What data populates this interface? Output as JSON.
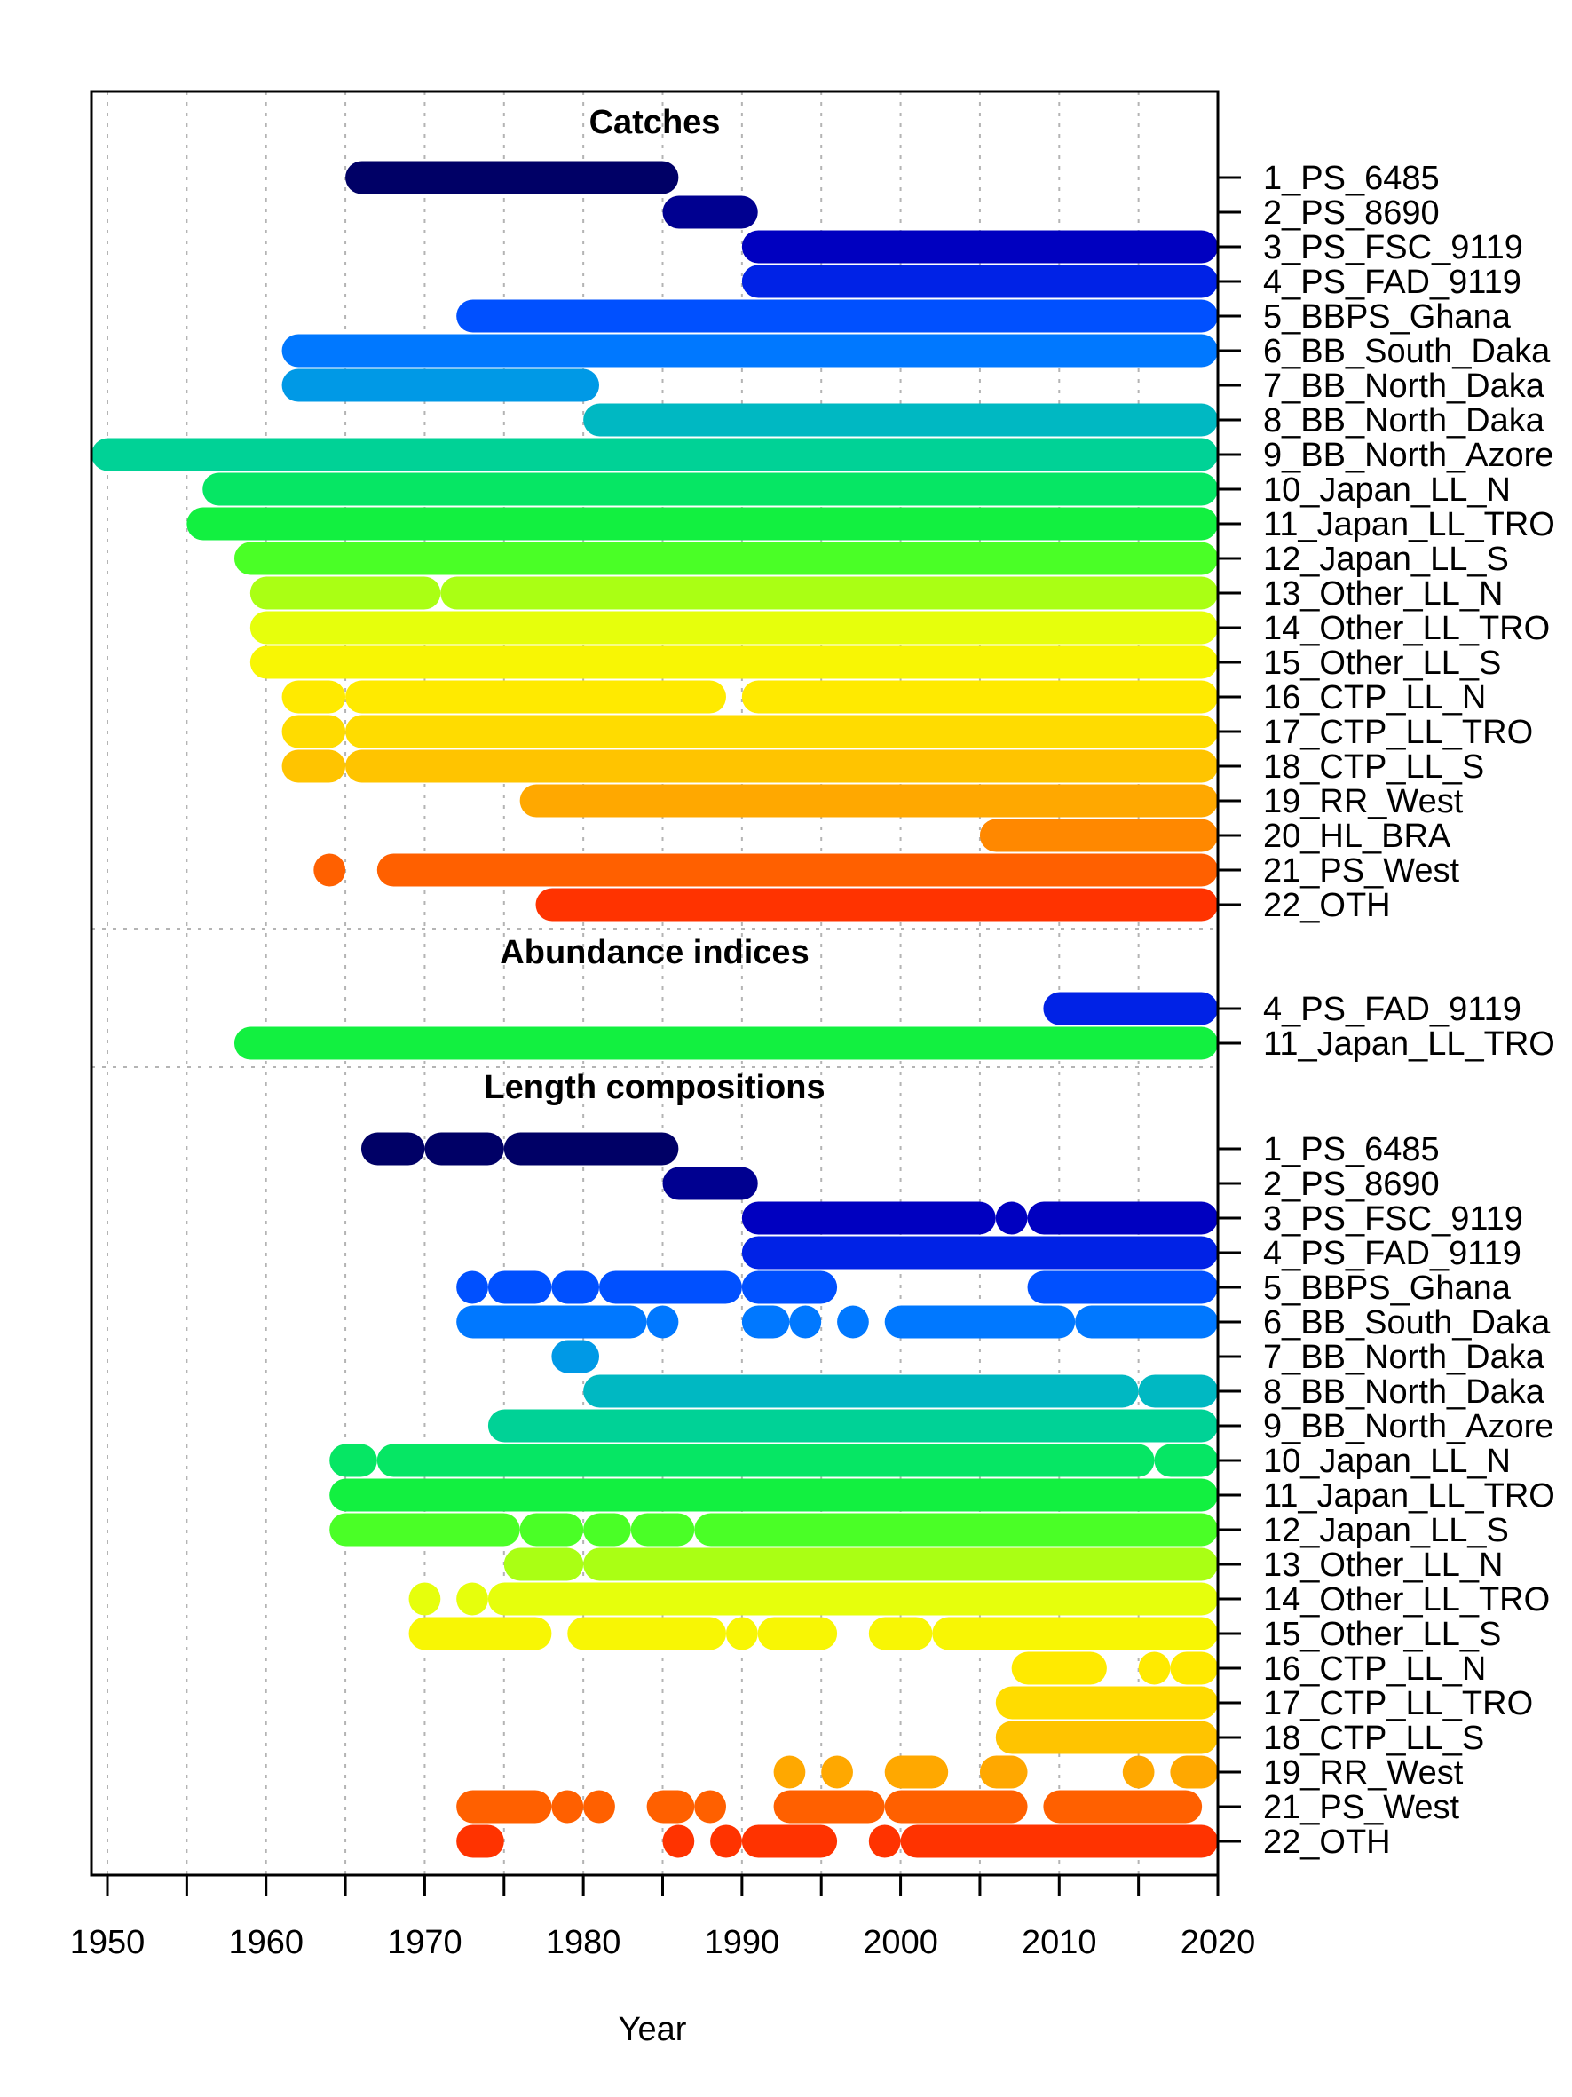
{
  "chart_data": {
    "type": "timeline",
    "xlabel": "Year",
    "xlim": [
      1949,
      2020
    ],
    "x_ticks": [
      1950,
      1955,
      1960,
      1965,
      1970,
      1975,
      1980,
      1985,
      1990,
      1995,
      2000,
      2005,
      2010,
      2015,
      2020
    ],
    "x_tick_labels": [
      "1950",
      "1960",
      "1970",
      "1980",
      "1990",
      "2000",
      "2010",
      "2020"
    ],
    "grid": "vertical dotted every 5 years; horizontal dotted separators between panels",
    "fleet_colors": {
      "1": "#000066",
      "2": "#000090",
      "3": "#0000C0",
      "4": "#0022E6",
      "5": "#0050FF",
      "6": "#0078FF",
      "7": "#0099E6",
      "8": "#00B8C2",
      "9": "#00D296",
      "10": "#06E664",
      "11": "#12F040",
      "12": "#4AFF26",
      "13": "#AAFF14",
      "14": "#E6FF0C",
      "15": "#F8F604",
      "16": "#FFEA00",
      "17": "#FFDC00",
      "18": "#FFC400",
      "19": "#FFA800",
      "20": "#FF8800",
      "21": "#FF6000",
      "22": "#FF3300"
    },
    "panels": [
      {
        "title": "Catches",
        "rows": [
          {
            "label": "1_PS_6485",
            "fleet": "1",
            "segments": [
              [
                1965,
                1986
              ]
            ]
          },
          {
            "label": "2_PS_8690",
            "fleet": "2",
            "segments": [
              [
                1985,
                1991
              ]
            ]
          },
          {
            "label": "3_PS_FSC_9119",
            "fleet": "3",
            "segments": [
              [
                1990,
                2020
              ]
            ]
          },
          {
            "label": "4_PS_FAD_9119",
            "fleet": "4",
            "segments": [
              [
                1990,
                2020
              ]
            ]
          },
          {
            "label": "5_BBPS_Ghana",
            "fleet": "5",
            "segments": [
              [
                1972,
                2020
              ]
            ]
          },
          {
            "label": "6_BB_South_Daka",
            "fleet": "6",
            "segments": [
              [
                1961,
                2020
              ]
            ]
          },
          {
            "label": "7_BB_North_Daka",
            "fleet": "7",
            "segments": [
              [
                1961,
                1981
              ]
            ]
          },
          {
            "label": "8_BB_North_Daka",
            "fleet": "8",
            "segments": [
              [
                1980,
                2020
              ]
            ]
          },
          {
            "label": "9_BB_North_Azore",
            "fleet": "9",
            "segments": [
              [
                1949,
                2020
              ]
            ]
          },
          {
            "label": "10_Japan_LL_N",
            "fleet": "10",
            "segments": [
              [
                1956,
                2020
              ]
            ]
          },
          {
            "label": "11_Japan_LL_TRO",
            "fleet": "11",
            "segments": [
              [
                1955,
                2020
              ]
            ]
          },
          {
            "label": "12_Japan_LL_S",
            "fleet": "12",
            "segments": [
              [
                1958,
                2020
              ]
            ]
          },
          {
            "label": "13_Other_LL_N",
            "fleet": "13",
            "segments": [
              [
                1959,
                1971
              ],
              [
                1971,
                2020
              ]
            ]
          },
          {
            "label": "14_Other_LL_TRO",
            "fleet": "14",
            "segments": [
              [
                1959,
                2020
              ]
            ]
          },
          {
            "label": "15_Other_LL_S",
            "fleet": "15",
            "segments": [
              [
                1959,
                2020
              ]
            ]
          },
          {
            "label": "16_CTP_LL_N",
            "fleet": "16",
            "segments": [
              [
                1961,
                1965
              ],
              [
                1965,
                1989
              ],
              [
                1990,
                2020
              ]
            ]
          },
          {
            "label": "17_CTP_LL_TRO",
            "fleet": "17",
            "segments": [
              [
                1961,
                1965
              ],
              [
                1965,
                2020
              ]
            ]
          },
          {
            "label": "18_CTP_LL_S",
            "fleet": "18",
            "segments": [
              [
                1961,
                1965
              ],
              [
                1965,
                2020
              ]
            ]
          },
          {
            "label": "19_RR_West",
            "fleet": "19",
            "segments": [
              [
                1976,
                2020
              ]
            ]
          },
          {
            "label": "20_HL_BRA",
            "fleet": "20",
            "segments": [
              [
                2005,
                2020
              ]
            ]
          },
          {
            "label": "21_PS_West",
            "fleet": "21",
            "segments": [
              [
                1963,
                1965
              ],
              [
                1967,
                2020
              ]
            ]
          },
          {
            "label": "22_OTH",
            "fleet": "22",
            "segments": [
              [
                1977,
                2020
              ]
            ]
          }
        ]
      },
      {
        "title": "Abundance indices",
        "rows": [
          {
            "label": "4_PS_FAD_9119",
            "fleet": "4",
            "segments": [
              [
                2009,
                2020
              ]
            ]
          },
          {
            "label": "11_Japan_LL_TRO",
            "fleet": "11",
            "segments": [
              [
                1958,
                2020
              ]
            ]
          }
        ]
      },
      {
        "title": "Length compositions",
        "rows": [
          {
            "label": "1_PS_6485",
            "fleet": "1",
            "segments": [
              [
                1966,
                1970
              ],
              [
                1970,
                1975
              ],
              [
                1975,
                1986
              ]
            ]
          },
          {
            "label": "2_PS_8690",
            "fleet": "2",
            "segments": [
              [
                1985,
                1991
              ]
            ]
          },
          {
            "label": "3_PS_FSC_9119",
            "fleet": "3",
            "segments": [
              [
                1990,
                2006
              ],
              [
                2006,
                2008
              ],
              [
                2008,
                2020
              ]
            ]
          },
          {
            "label": "4_PS_FAD_9119",
            "fleet": "4",
            "segments": [
              [
                1990,
                2020
              ]
            ]
          },
          {
            "label": "5_BBPS_Ghana",
            "fleet": "5",
            "segments": [
              [
                1972,
                1974
              ],
              [
                1974,
                1978
              ],
              [
                1978,
                1981
              ],
              [
                1981,
                1990
              ],
              [
                1990,
                1996
              ],
              [
                2008,
                2020
              ]
            ]
          },
          {
            "label": "6_BB_South_Daka",
            "fleet": "6",
            "segments": [
              [
                1972,
                1984
              ],
              [
                1984,
                1986
              ],
              [
                1990,
                1993
              ],
              [
                1993,
                1995
              ],
              [
                1996,
                1998
              ],
              [
                1999,
                2011
              ],
              [
                2011,
                2020
              ]
            ]
          },
          {
            "label": "7_BB_North_Daka",
            "fleet": "7",
            "segments": [
              [
                1978,
                1981
              ]
            ]
          },
          {
            "label": "8_BB_North_Daka",
            "fleet": "8",
            "segments": [
              [
                1980,
                2015
              ],
              [
                2015,
                2020
              ]
            ]
          },
          {
            "label": "9_BB_North_Azore",
            "fleet": "9",
            "segments": [
              [
                1974,
                2020
              ]
            ]
          },
          {
            "label": "10_Japan_LL_N",
            "fleet": "10",
            "segments": [
              [
                1964,
                1967
              ],
              [
                1967,
                2016
              ],
              [
                2016,
                2020
              ]
            ]
          },
          {
            "label": "11_Japan_LL_TRO",
            "fleet": "11",
            "segments": [
              [
                1964,
                2020
              ]
            ]
          },
          {
            "label": "12_Japan_LL_S",
            "fleet": "12",
            "segments": [
              [
                1964,
                1976
              ],
              [
                1976,
                1980
              ],
              [
                1980,
                1983
              ],
              [
                1983,
                1987
              ],
              [
                1987,
                2020
              ]
            ]
          },
          {
            "label": "13_Other_LL_N",
            "fleet": "13",
            "segments": [
              [
                1975,
                1980
              ],
              [
                1980,
                2020
              ]
            ]
          },
          {
            "label": "14_Other_LL_TRO",
            "fleet": "14",
            "segments": [
              [
                1969,
                1971
              ],
              [
                1972,
                1974
              ],
              [
                1974,
                2020
              ]
            ]
          },
          {
            "label": "15_Other_LL_S",
            "fleet": "15",
            "segments": [
              [
                1969,
                1978
              ],
              [
                1979,
                1989
              ],
              [
                1989,
                1991
              ],
              [
                1991,
                1996
              ],
              [
                1998,
                2002
              ],
              [
                2002,
                2020
              ]
            ]
          },
          {
            "label": "16_CTP_LL_N",
            "fleet": "16",
            "segments": [
              [
                2007,
                2013
              ],
              [
                2015,
                2017
              ],
              [
                2017,
                2020
              ]
            ]
          },
          {
            "label": "17_CTP_LL_TRO",
            "fleet": "17",
            "segments": [
              [
                2006,
                2020
              ]
            ]
          },
          {
            "label": "18_CTP_LL_S",
            "fleet": "18",
            "segments": [
              [
                2006,
                2020
              ]
            ]
          },
          {
            "label": "19_RR_West",
            "fleet": "19",
            "segments": [
              [
                1992,
                1994
              ],
              [
                1995,
                1997
              ],
              [
                1999,
                2003
              ],
              [
                2005,
                2008
              ],
              [
                2014,
                2016
              ],
              [
                2017,
                2020
              ]
            ]
          },
          {
            "label": "21_PS_West",
            "fleet": "21",
            "segments": [
              [
                1972,
                1978
              ],
              [
                1978,
                1980
              ],
              [
                1980,
                1982
              ],
              [
                1984,
                1987
              ],
              [
                1987,
                1989
              ],
              [
                1992,
                1999
              ],
              [
                1999,
                2008
              ],
              [
                2009,
                2019
              ]
            ]
          },
          {
            "label": "22_OTH",
            "fleet": "22",
            "segments": [
              [
                1972,
                1975
              ],
              [
                1985,
                1987
              ],
              [
                1988,
                1990
              ],
              [
                1990,
                1996
              ],
              [
                1998,
                2000
              ],
              [
                2000,
                2020
              ]
            ]
          }
        ]
      }
    ]
  }
}
